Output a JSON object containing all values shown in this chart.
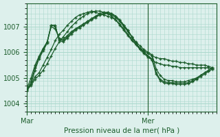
{
  "title": "Pression niveau de la mer( hPa )",
  "bg_color": "#ddf0ec",
  "grid_color": "#aad8cc",
  "line_color": "#1a5c2a",
  "xlim": [
    0,
    47
  ],
  "ylim": [
    1003.7,
    1007.9
  ],
  "yticks": [
    1004,
    1005,
    1006,
    1007
  ],
  "xtick_labels": [
    "Mar",
    "Mer"
  ],
  "xtick_positions": [
    0,
    30
  ],
  "vline_x": 30,
  "series": [
    [
      1004.55,
      1004.75,
      1005.05,
      1005.2,
      1005.5,
      1005.8,
      1006.1,
      1006.45,
      1006.7,
      1006.85,
      1007.05,
      1007.2,
      1007.35,
      1007.45,
      1007.5,
      1007.55,
      1007.6,
      1007.55,
      1007.5,
      1007.45,
      1007.4,
      1007.35,
      1007.25,
      1007.1,
      1006.9,
      1006.7,
      1006.5,
      1006.3,
      1006.1,
      1005.95,
      1005.8,
      1005.7,
      1005.6,
      1005.55,
      1005.5,
      1005.5,
      1005.45,
      1005.45,
      1005.4,
      1005.4,
      1005.4,
      1005.4,
      1005.4,
      1005.4,
      1005.4,
      1005.4,
      1005.35
    ],
    [
      1004.55,
      1004.7,
      1004.95,
      1005.1,
      1005.3,
      1005.55,
      1005.85,
      1006.15,
      1006.4,
      1006.6,
      1006.8,
      1007.0,
      1007.15,
      1007.3,
      1007.4,
      1007.5,
      1007.55,
      1007.6,
      1007.6,
      1007.55,
      1007.5,
      1007.4,
      1007.25,
      1007.05,
      1006.85,
      1006.65,
      1006.45,
      1006.3,
      1006.15,
      1006.05,
      1005.95,
      1005.85,
      1005.8,
      1005.75,
      1005.75,
      1005.7,
      1005.65,
      1005.65,
      1005.6,
      1005.6,
      1005.55,
      1005.55,
      1005.5,
      1005.5,
      1005.5,
      1005.45,
      1005.4
    ],
    [
      1004.6,
      1005.0,
      1005.5,
      1005.85,
      1006.15,
      1006.4,
      1007.0,
      1006.9,
      1006.55,
      1006.5,
      1006.65,
      1006.8,
      1006.9,
      1007.0,
      1007.1,
      1007.2,
      1007.3,
      1007.4,
      1007.45,
      1007.5,
      1007.5,
      1007.45,
      1007.35,
      1007.2,
      1007.0,
      1006.8,
      1006.6,
      1006.4,
      1006.25,
      1006.1,
      1006.0,
      1005.9,
      1005.35,
      1005.1,
      1004.95,
      1004.9,
      1004.9,
      1004.85,
      1004.85,
      1004.85,
      1004.9,
      1004.95,
      1005.0,
      1005.1,
      1005.2,
      1005.3,
      1005.4
    ],
    [
      1004.55,
      1004.85,
      1005.4,
      1005.8,
      1006.1,
      1006.4,
      1007.05,
      1007.0,
      1006.5,
      1006.45,
      1006.6,
      1006.75,
      1006.9,
      1007.0,
      1007.1,
      1007.2,
      1007.3,
      1007.4,
      1007.5,
      1007.55,
      1007.55,
      1007.5,
      1007.4,
      1007.25,
      1007.05,
      1006.85,
      1006.6,
      1006.35,
      1006.15,
      1006.0,
      1005.85,
      1005.75,
      1005.2,
      1004.95,
      1004.85,
      1004.82,
      1004.82,
      1004.8,
      1004.8,
      1004.8,
      1004.82,
      1004.9,
      1004.98,
      1005.1,
      1005.2,
      1005.3,
      1005.4
    ],
    [
      1004.5,
      1004.75,
      1005.3,
      1005.75,
      1006.05,
      1006.35,
      1007.05,
      1007.05,
      1006.45,
      1006.4,
      1006.55,
      1006.7,
      1006.85,
      1006.95,
      1007.05,
      1007.15,
      1007.25,
      1007.35,
      1007.45,
      1007.5,
      1007.55,
      1007.5,
      1007.4,
      1007.25,
      1007.05,
      1006.85,
      1006.6,
      1006.35,
      1006.15,
      1006.0,
      1005.85,
      1005.7,
      1005.15,
      1004.9,
      1004.8,
      1004.78,
      1004.78,
      1004.75,
      1004.75,
      1004.75,
      1004.78,
      1004.85,
      1004.95,
      1005.05,
      1005.15,
      1005.25,
      1005.35
    ]
  ]
}
